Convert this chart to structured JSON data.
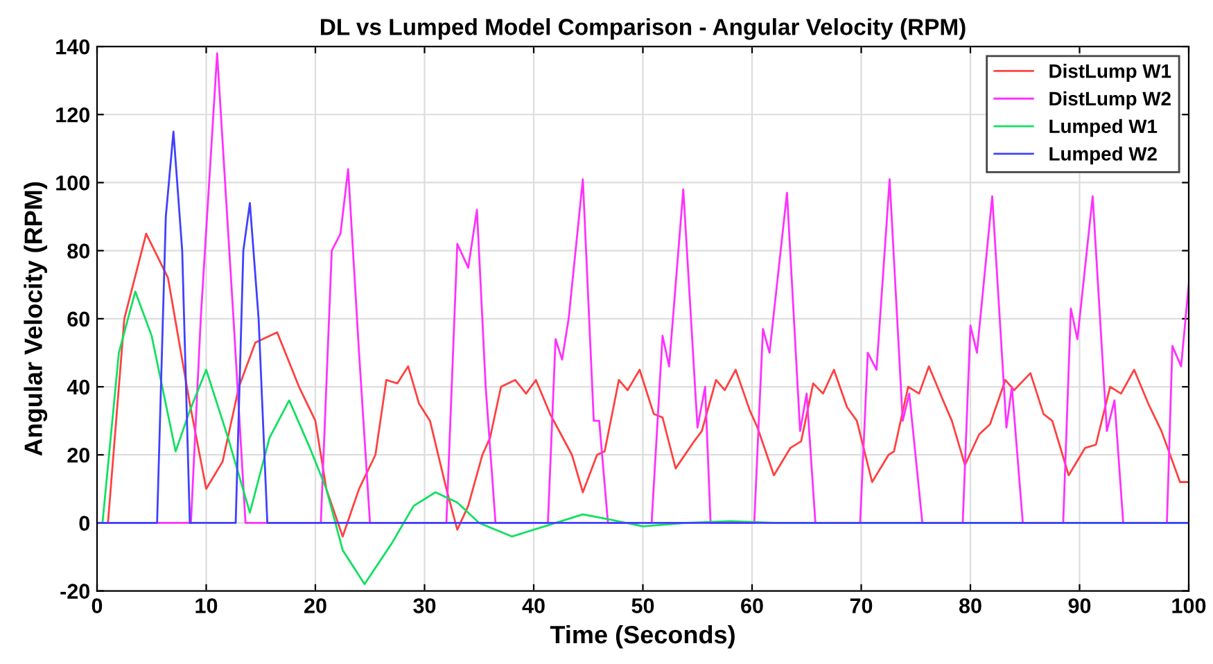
{
  "chart_data": {
    "type": "line",
    "title": "DL vs Lumped Model Comparison - Angular Velocity (RPM)",
    "xlabel": "Time (Seconds)",
    "ylabel": "Angular Velocity (RPM)",
    "xlim": [
      0,
      100
    ],
    "ylim": [
      -20,
      140
    ],
    "xticks": [
      0,
      10,
      20,
      30,
      40,
      50,
      60,
      70,
      80,
      90,
      100
    ],
    "yticks": [
      -20,
      0,
      20,
      40,
      60,
      80,
      100,
      120,
      140
    ],
    "grid": true,
    "legend": "top right",
    "marker": "none",
    "line_style": "solid",
    "series": [
      {
        "name": "DistLump W1",
        "color": "#ff4040",
        "x": [
          1,
          2.5,
          4.5,
          6.5,
          8.5,
          10,
          11.5,
          13,
          14.5,
          16.5,
          18.5,
          20,
          21,
          22.5,
          24,
          25.5,
          26.5,
          27.5,
          28.5,
          29.5,
          30.5,
          32,
          33,
          34,
          35.3,
          36,
          37,
          38.3,
          39.3,
          40.2,
          41.5,
          42.5,
          43.5,
          44.5,
          45.8,
          46.5,
          47.8,
          48.6,
          49.7,
          51,
          51.8,
          53,
          54.7,
          55.4,
          56.7,
          57.5,
          58.5,
          59.8,
          60.5,
          62,
          63.5,
          64.5,
          65.6,
          66.5,
          67.5,
          68.7,
          69.6,
          71,
          72.5,
          73,
          74.3,
          75.3,
          76.2,
          77.5,
          78.3,
          79.5,
          80.8,
          81.8,
          83.2,
          84,
          85.5,
          86.7,
          87.5,
          89,
          90.5,
          91.5,
          92.8,
          93.8,
          95,
          96.3,
          97.5,
          99.2,
          100
        ],
        "values": [
          0,
          60,
          85,
          72,
          35,
          10,
          18,
          40,
          53,
          56,
          40,
          30,
          10,
          -4,
          10,
          20,
          42,
          41,
          46,
          35,
          30,
          10,
          -2,
          5,
          20,
          25,
          40,
          42,
          38,
          42,
          32,
          26,
          20,
          9,
          20,
          21,
          42,
          39,
          45,
          32,
          31,
          16,
          24,
          27,
          42,
          39,
          45,
          33,
          28,
          14,
          22,
          24,
          41,
          38,
          45,
          34,
          30,
          12,
          20,
          21,
          40,
          38,
          46,
          36,
          30,
          17,
          26,
          29,
          42,
          39,
          44,
          32,
          30,
          14,
          22,
          23,
          40,
          38,
          45,
          35,
          27,
          12,
          12
        ]
      },
      {
        "name": "DistLump W2",
        "color": "#ff30ff",
        "x": [
          0,
          8.6,
          9.5,
          11,
          12.5,
          13.6,
          20.5,
          21.5,
          22.3,
          23,
          24,
          25,
          32,
          33,
          34,
          34.8,
          35.6,
          36.5,
          41.3,
          42,
          42.6,
          43.2,
          44.5,
          45.5,
          46,
          46.8,
          50.8,
          51.8,
          52.4,
          53.7,
          55,
          55.7,
          56.2,
          60.2,
          61,
          61.6,
          63.2,
          64.4,
          65,
          65.8,
          69.9,
          70.6,
          71.4,
          72.6,
          73.8,
          74.4,
          75.6,
          79.3,
          80,
          80.6,
          82,
          83.3,
          83.8,
          84.8,
          88.5,
          89.2,
          89.8,
          91.2,
          92.5,
          93.2,
          94,
          98,
          98.5,
          99.3,
          100
        ],
        "values": [
          0,
          0,
          60,
          138,
          60,
          0,
          0,
          80,
          85,
          104,
          50,
          0,
          0,
          82,
          75,
          92,
          40,
          0,
          0,
          54,
          48,
          60,
          101,
          30,
          30,
          0,
          0,
          55,
          46,
          98,
          28,
          40,
          0,
          0,
          57,
          50,
          97,
          27,
          38,
          0,
          0,
          50,
          45,
          101,
          30,
          38,
          0,
          0,
          58,
          50,
          96,
          28,
          40,
          0,
          0,
          63,
          54,
          96,
          27,
          36,
          0,
          0,
          52,
          46,
          70
        ]
      },
      {
        "name": "Lumped W1",
        "color": "#10e060",
        "x": [
          0.5,
          2,
          3.5,
          5,
          7.2,
          8.5,
          10,
          12,
          14,
          15.8,
          17.6,
          19.5,
          21,
          22.5,
          24.5,
          27,
          29,
          31,
          33,
          35,
          38,
          41,
          44.5,
          47,
          50,
          54,
          58,
          62,
          65,
          100
        ],
        "values": [
          0,
          50,
          68,
          55,
          21,
          33,
          45,
          25,
          3,
          25,
          36,
          22,
          10,
          -8,
          -18,
          -6,
          5,
          9,
          6,
          0,
          -4,
          -1,
          2.5,
          1,
          -1,
          0,
          0.5,
          0,
          0,
          0
        ]
      },
      {
        "name": "Lumped W2",
        "color": "#4040ff",
        "x": [
          0,
          5.5,
          6.3,
          7,
          7.8,
          8.5,
          12.7,
          13.4,
          14,
          14.8,
          15.6,
          100
        ],
        "values": [
          0,
          0,
          90,
          115,
          80,
          0,
          0,
          80,
          94,
          60,
          0,
          0
        ]
      }
    ]
  }
}
